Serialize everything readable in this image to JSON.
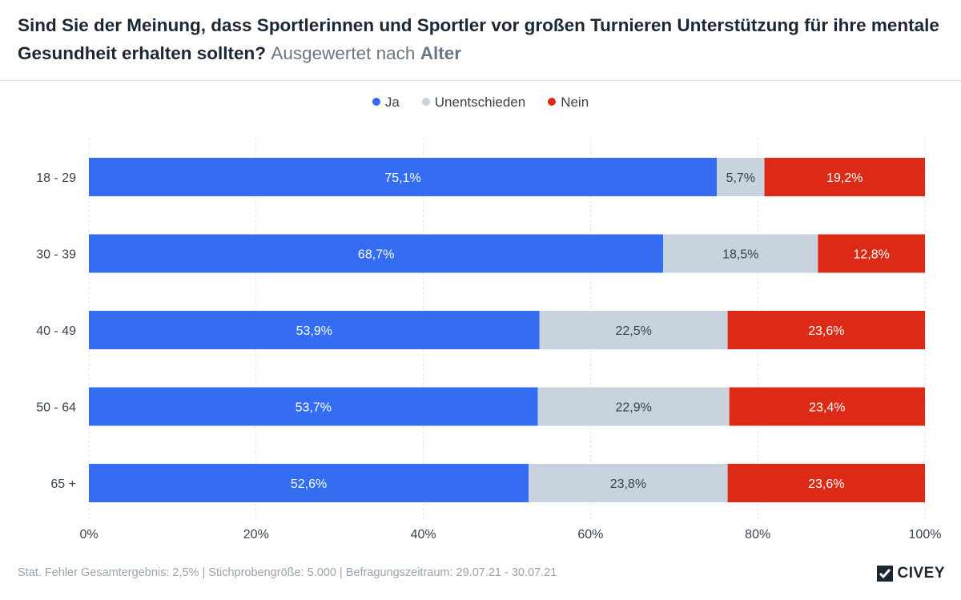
{
  "title": {
    "main": "Sind Sie der Meinung, dass Sportlerinnen und Sportler vor großen Turnieren Unterstützung für ihre mentale Gesundheit erhalten sollten?",
    "sub_prefix": "Ausgewertet nach",
    "sub_bold": "Alter"
  },
  "footer": "Stat. Fehler Gesamtergebnis: 2,5% | Stichprobengröße: 5.000 | Befragungszeitraum: 29.07.21 - 30.07.21",
  "logo": "CIVEY",
  "colors": {
    "ja": "#346df2",
    "unentschieden": "#c8d3de",
    "nein": "#dd2a17"
  },
  "chart_data": {
    "type": "bar",
    "orientation": "horizontal",
    "stacked": true,
    "categories": [
      "18 - 29",
      "30 - 39",
      "40 - 49",
      "50 - 64",
      "65 +"
    ],
    "series": [
      {
        "name": "Ja",
        "values": [
          75.1,
          68.7,
          53.9,
          53.7,
          52.6
        ],
        "labels": [
          "75,1%",
          "68,7%",
          "53,9%",
          "53,7%",
          "52,6%"
        ]
      },
      {
        "name": "Unentschieden",
        "values": [
          5.7,
          18.5,
          22.5,
          22.9,
          23.8
        ],
        "labels": [
          "5,7%",
          "18,5%",
          "22,5%",
          "22,9%",
          "23,8%"
        ]
      },
      {
        "name": "Nein",
        "values": [
          19.2,
          12.8,
          23.6,
          23.4,
          23.6
        ],
        "labels": [
          "19,2%",
          "12,8%",
          "23,6%",
          "23,4%",
          "23,6%"
        ]
      }
    ],
    "xlim": [
      0,
      100
    ],
    "xticks": [
      "0%",
      "20%",
      "40%",
      "60%",
      "80%",
      "100%"
    ],
    "grid": true,
    "legend": "top-center"
  }
}
